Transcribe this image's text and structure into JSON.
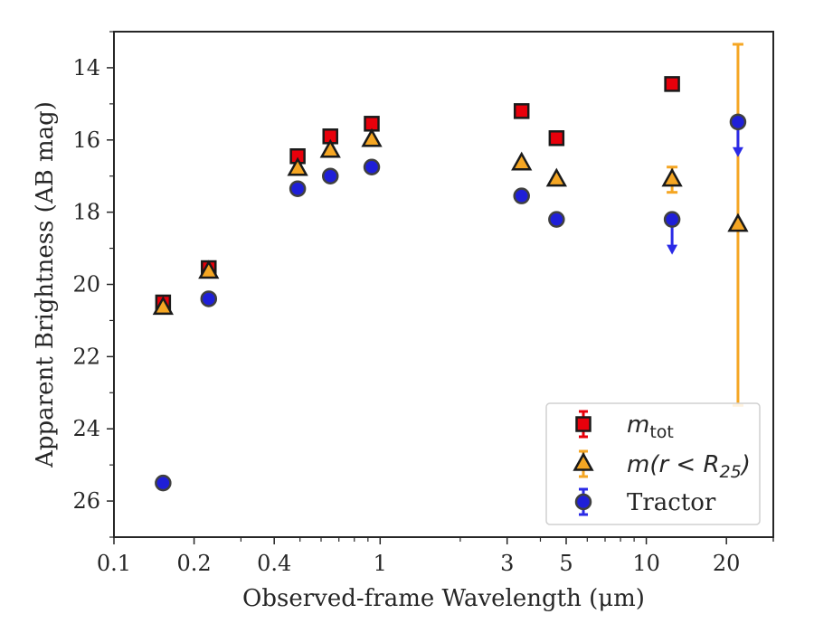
{
  "chart_data": {
    "type": "scatter",
    "title": "",
    "xlabel": "Observed-frame Wavelength (μm)",
    "ylabel": "Apparent Brightness (AB mag)",
    "x_scale": "log",
    "xlim": [
      0.1,
      30
    ],
    "ylim": [
      27,
      13
    ],
    "y_inverted": true,
    "x_ticks": [
      {
        "value": 0.1,
        "label": "0.1"
      },
      {
        "value": 0.2,
        "label": "0.2"
      },
      {
        "value": 0.4,
        "label": "0.4"
      },
      {
        "value": 1,
        "label": "1"
      },
      {
        "value": 3,
        "label": "3"
      },
      {
        "value": 5,
        "label": "5"
      },
      {
        "value": 10,
        "label": "10"
      },
      {
        "value": 20,
        "label": "20"
      }
    ],
    "y_ticks": [
      {
        "value": 14,
        "label": "14"
      },
      {
        "value": 16,
        "label": "16"
      },
      {
        "value": 18,
        "label": "18"
      },
      {
        "value": 20,
        "label": "20"
      },
      {
        "value": 22,
        "label": "22"
      },
      {
        "value": 24,
        "label": "24"
      },
      {
        "value": 26,
        "label": "26"
      }
    ],
    "grid": false,
    "legend_position": "bottom-right",
    "series": [
      {
        "name": "m_tot",
        "legend_main": "m",
        "legend_sub": "tot",
        "marker": "square",
        "face_color": "#e8000b",
        "edge_color": "#1a1a1a",
        "error_color": "#e8000b",
        "points": [
          {
            "x": 0.153,
            "y": 20.5
          },
          {
            "x": 0.227,
            "y": 19.55
          },
          {
            "x": 0.49,
            "y": 16.45
          },
          {
            "x": 0.65,
            "y": 15.9
          },
          {
            "x": 0.93,
            "y": 15.55
          },
          {
            "x": 3.4,
            "y": 15.2
          },
          {
            "x": 4.6,
            "y": 15.95
          },
          {
            "x": 12.5,
            "y": 14.45
          }
        ]
      },
      {
        "name": "m(r < R_25)",
        "legend_main": "m(r < R",
        "legend_sub": "25",
        "legend_tail": ")",
        "marker": "triangle",
        "face_color": "#f5a623",
        "edge_color": "#1a1a1a",
        "error_color": "#f5a623",
        "points": [
          {
            "x": 0.153,
            "y": 20.65
          },
          {
            "x": 0.227,
            "y": 19.65
          },
          {
            "x": 0.49,
            "y": 16.8
          },
          {
            "x": 0.65,
            "y": 16.3
          },
          {
            "x": 0.93,
            "y": 16.0
          },
          {
            "x": 3.4,
            "y": 16.65
          },
          {
            "x": 4.6,
            "y": 17.1
          },
          {
            "x": 12.5,
            "y": 17.1,
            "err_low": 16.75,
            "err_high": 17.45
          },
          {
            "x": 22.1,
            "y": 18.35,
            "err_low": 13.35,
            "err_high": 23.35
          }
        ]
      },
      {
        "name": "Tractor",
        "legend_main": "Tractor",
        "marker": "circle",
        "face_color": "#1f1fd8",
        "edge_color": "#404040",
        "error_color": "#2a2ae6",
        "points": [
          {
            "x": 0.153,
            "y": 25.5
          },
          {
            "x": 0.227,
            "y": 20.4
          },
          {
            "x": 0.49,
            "y": 17.35
          },
          {
            "x": 0.65,
            "y": 17.0
          },
          {
            "x": 0.93,
            "y": 16.75
          },
          {
            "x": 3.4,
            "y": 17.55
          },
          {
            "x": 4.6,
            "y": 18.2
          },
          {
            "x": 12.5,
            "y": 18.2,
            "upper_limit": true,
            "arrow_to": 19.1
          },
          {
            "x": 22.1,
            "y": 15.5,
            "upper_limit": true,
            "arrow_to": 16.4
          }
        ]
      }
    ]
  }
}
